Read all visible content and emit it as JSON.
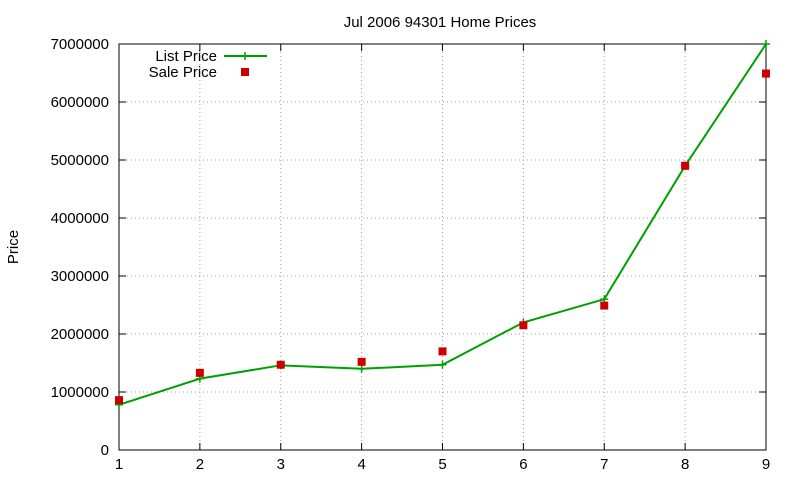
{
  "chart_data": {
    "type": "line",
    "title": "Jul 2006 94301 Home Prices",
    "xlabel": "",
    "ylabel": "Price",
    "x": [
      1,
      2,
      3,
      4,
      5,
      6,
      7,
      8,
      9
    ],
    "xlim": [
      1,
      9
    ],
    "ylim": [
      0,
      7000000
    ],
    "xticks": [
      "1",
      "2",
      "3",
      "4",
      "5",
      "6",
      "7",
      "8",
      "9"
    ],
    "yticks": [
      "0",
      "1000000",
      "2000000",
      "3000000",
      "4000000",
      "5000000",
      "6000000",
      "7000000"
    ],
    "grid": true,
    "legend_position": "top-left",
    "series": [
      {
        "name": "List Price",
        "style": "line-with-plus-markers",
        "color": "#00a000",
        "values": [
          780000,
          1230000,
          1460000,
          1400000,
          1470000,
          2200000,
          2600000,
          4900000,
          7000000
        ]
      },
      {
        "name": "Sale Price",
        "style": "square-markers",
        "color": "#cc0000",
        "values": [
          860000,
          1330000,
          1470000,
          1520000,
          1700000,
          2150000,
          2490000,
          4900000,
          6490000
        ]
      }
    ]
  }
}
